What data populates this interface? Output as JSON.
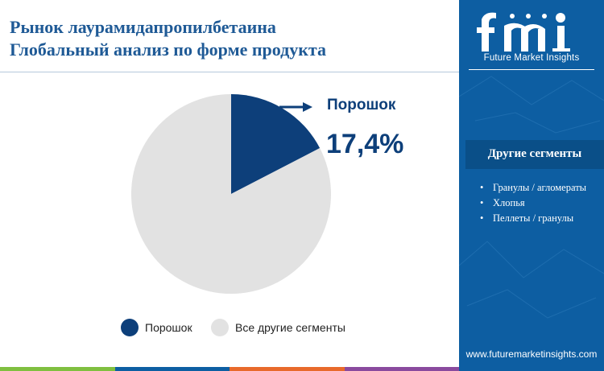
{
  "header": {
    "title_line1": "Рынок лаурамидапропилбетаина",
    "title_line2": "Глобальный анализ по форме продукта"
  },
  "chart_data": {
    "type": "pie",
    "categories": [
      "Порошок",
      "Все другие сегменты"
    ],
    "values": [
      17.4,
      82.6
    ],
    "unit": "%",
    "colors": [
      "#0d3f7a",
      "#e2e2e2"
    ],
    "highlight": {
      "label": "Порошок",
      "value": "17,4%"
    },
    "legend": [
      "Порошок",
      "Все другие сегменты"
    ],
    "legend_position": "bottom"
  },
  "sidebar": {
    "brand": "Future Market Insights",
    "segments_title": "Другие сегменты",
    "segments": [
      "Гранулы / агломераты",
      "Хлопья",
      "Пеллеты / гранулы"
    ],
    "website": "www.futuremarketinsights.com"
  },
  "colors": {
    "title": "#1f5a96",
    "sidebar_bg": "#0d5ea2",
    "accent_dark": "#0d3f7a",
    "bottom_bar": [
      "#7fbf3f",
      "#0d5ea2",
      "#e8692b",
      "#8a4a9e"
    ]
  }
}
